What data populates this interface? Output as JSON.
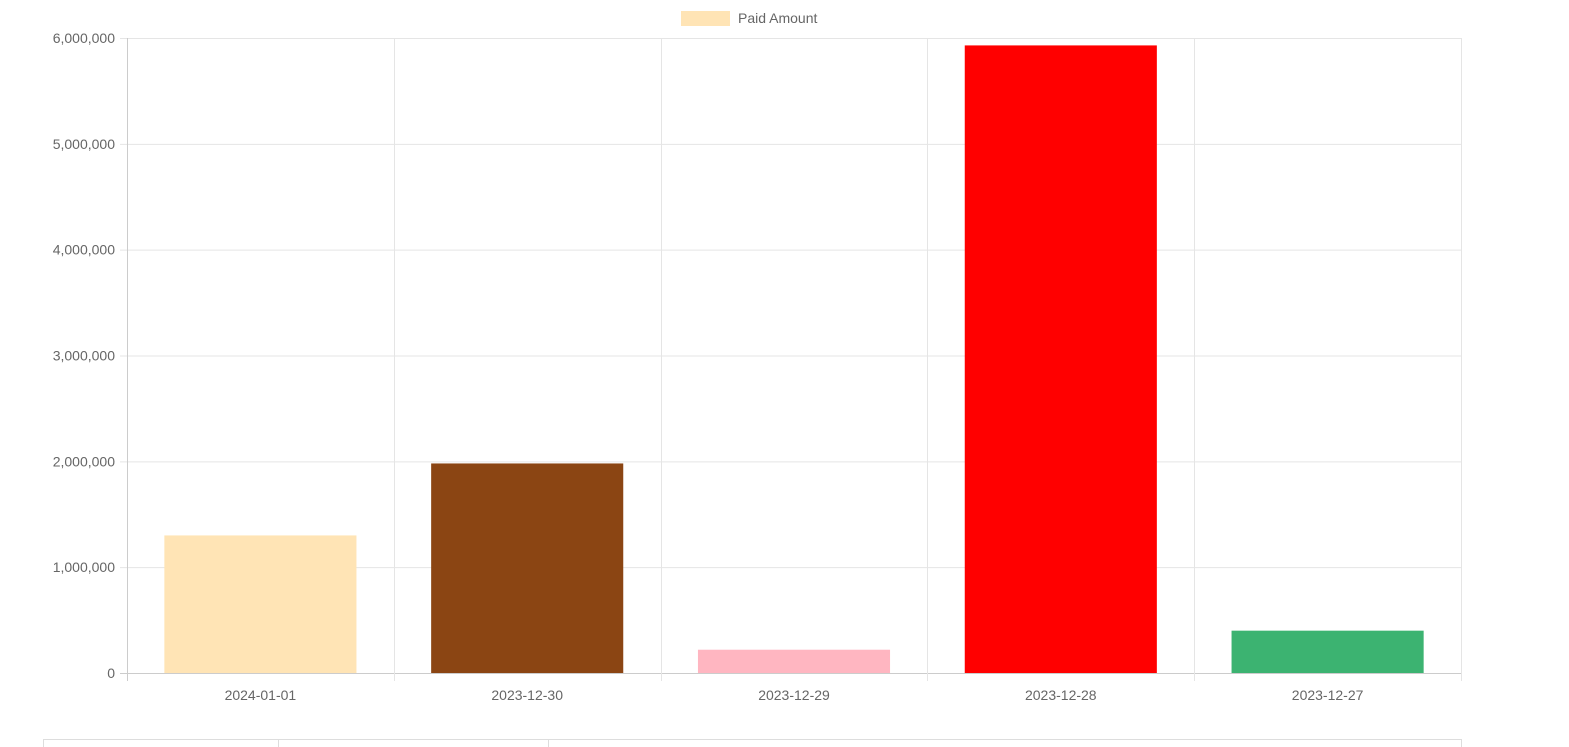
{
  "chart_data": {
    "type": "bar",
    "title": "",
    "xlabel": "",
    "ylabel": "",
    "categories": [
      "2024-01-01",
      "2023-12-30",
      "2023-12-29",
      "2023-12-28",
      "2023-12-27"
    ],
    "series": [
      {
        "name": "Paid Amount",
        "values": [
          1300000,
          1980000,
          220000,
          5930000,
          400000
        ]
      }
    ],
    "bar_colors": [
      "#FFE4B5",
      "#8B4513",
      "#FFB6C1",
      "#FF0000",
      "#3CB371"
    ],
    "legend_color": "#FFE4B5",
    "ylim": [
      0,
      6000000
    ],
    "yticks": [
      0,
      1000000,
      2000000,
      3000000,
      4000000,
      5000000,
      6000000
    ],
    "ytick_labels": [
      "0",
      "1,000,000",
      "2,000,000",
      "3,000,000",
      "4,000,000",
      "5,000,000",
      "6,000,000"
    ],
    "grid": true,
    "legend_position": "top-center"
  },
  "colors": {
    "grid": "#e5e5e5",
    "axis": "#cccccc",
    "text": "#666666"
  }
}
